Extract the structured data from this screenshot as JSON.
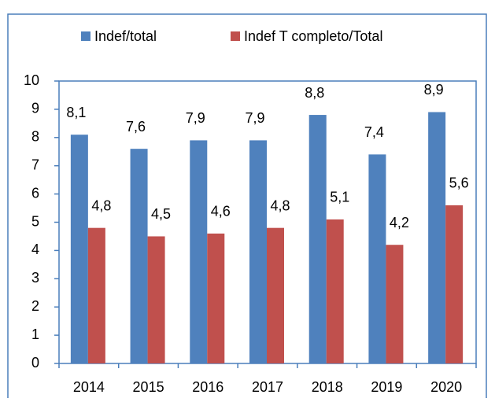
{
  "chart_data": {
    "type": "bar",
    "categories": [
      "2014",
      "2015",
      "2016",
      "2017",
      "2018",
      "2019",
      "2020"
    ],
    "series": [
      {
        "name": "Indef/total",
        "color": "#4f81bd",
        "values": [
          8.1,
          7.6,
          7.9,
          7.9,
          8.8,
          7.4,
          8.9
        ],
        "value_labels": [
          "8,1",
          "7,6",
          "7,9",
          "7,9",
          "8,8",
          "7,4",
          "8,9"
        ]
      },
      {
        "name": "Indef T completo/Total",
        "color": "#c0504d",
        "values": [
          4.8,
          4.5,
          4.6,
          4.8,
          5.1,
          4.2,
          5.6
        ],
        "value_labels": [
          "4,8",
          "4,5",
          "4,6",
          "4,8",
          "5,1",
          "4,2",
          "5,6"
        ]
      }
    ],
    "ylim": [
      0,
      10
    ],
    "yticks": [
      0,
      1,
      2,
      3,
      4,
      5,
      6,
      7,
      8,
      9,
      10
    ],
    "legend": "top"
  }
}
